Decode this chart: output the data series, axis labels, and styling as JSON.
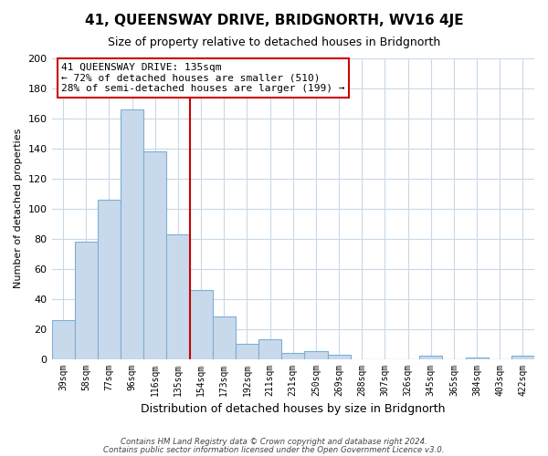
{
  "title": "41, QUEENSWAY DRIVE, BRIDGNORTH, WV16 4JE",
  "subtitle": "Size of property relative to detached houses in Bridgnorth",
  "xlabel": "Distribution of detached houses by size in Bridgnorth",
  "ylabel": "Number of detached properties",
  "bar_labels": [
    "39sqm",
    "58sqm",
    "77sqm",
    "96sqm",
    "116sqm",
    "135sqm",
    "154sqm",
    "173sqm",
    "192sqm",
    "211sqm",
    "231sqm",
    "250sqm",
    "269sqm",
    "288sqm",
    "307sqm",
    "326sqm",
    "345sqm",
    "365sqm",
    "384sqm",
    "403sqm",
    "422sqm"
  ],
  "bar_values": [
    26,
    78,
    106,
    166,
    138,
    83,
    46,
    28,
    10,
    13,
    4,
    5,
    3,
    0,
    0,
    0,
    2,
    0,
    1,
    0,
    2
  ],
  "bar_color": "#c9d9ec",
  "bar_edge_color": "#7bafd4",
  "vline_color": "#cc0000",
  "ylim": [
    0,
    200
  ],
  "yticks": [
    0,
    20,
    40,
    60,
    80,
    100,
    120,
    140,
    160,
    180,
    200
  ],
  "annotation_title": "41 QUEENSWAY DRIVE: 135sqm",
  "annotation_line1": "← 72% of detached houses are smaller (510)",
  "annotation_line2": "28% of semi-detached houses are larger (199) →",
  "footnote1": "Contains HM Land Registry data © Crown copyright and database right 2024.",
  "footnote2": "Contains public sector information licensed under the Open Government Licence v3.0.",
  "bg_color": "#ffffff",
  "plot_bg_color": "#ffffff",
  "grid_color": "#c8d8e8"
}
